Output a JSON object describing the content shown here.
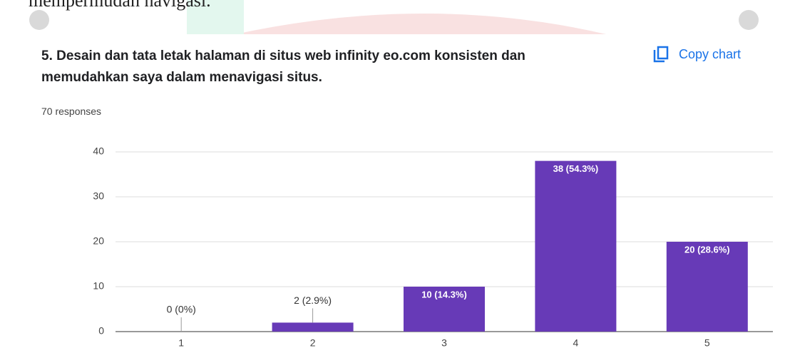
{
  "page_text": "mempermudah navigasi.",
  "chart_data": {
    "type": "bar",
    "title": "5. Desain dan tata letak halaman di situs web infinity eo.com konsisten dan memudahkan saya dalam menavigasi situs.",
    "subtitle": "70 responses",
    "button": "Copy chart",
    "categories": [
      "1",
      "2",
      "3",
      "4",
      "5"
    ],
    "values": [
      0,
      2,
      10,
      38,
      20
    ],
    "value_labels": [
      "0 (0%)",
      "2 (2.9%)",
      "10 (14.3%)",
      "38 (54.3%)",
      "20 (28.6%)"
    ],
    "color": "#673ab7",
    "ylim": [
      0,
      40
    ],
    "yticks": [
      0,
      10,
      20,
      30,
      40
    ],
    "grid": true
  }
}
